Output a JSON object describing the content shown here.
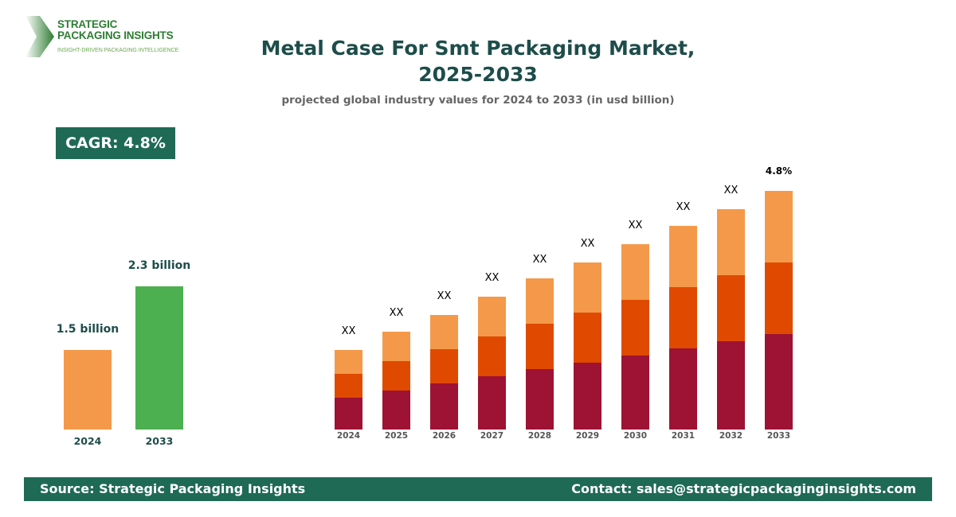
{
  "logo": {
    "line1": "STRATEGIC",
    "line2": "PACKAGING INSIGHTS",
    "tagline": "INSIGHT-DRIVEN PACKAGING INTELLIGENCE"
  },
  "header": {
    "title_line1": "Metal Case For Smt Packaging Market,",
    "title_line2": "2025-2033",
    "subtitle": "projected global industry values for 2024 to 2033 (in usd billion)"
  },
  "cagr_badge": "CAGR: 4.8%",
  "footer": {
    "source": "Source: Strategic Packaging Insights",
    "contact": "Contact: sales@strategicpackaginginsights.com"
  },
  "chart_data": [
    {
      "type": "bar",
      "categories": [
        "2024",
        "2033"
      ],
      "values": [
        1.5,
        2.3
      ],
      "data_labels": [
        "1.5 billion",
        "2.3 billion"
      ],
      "colors": [
        "#F4994A",
        "#4CB050"
      ]
    },
    {
      "type": "bar",
      "stacked": true,
      "categories": [
        "2024",
        "2025",
        "2026",
        "2027",
        "2028",
        "2029",
        "2030",
        "2031",
        "2032",
        "2033"
      ],
      "series": [
        {
          "values": [
            40,
            49,
            58,
            67,
            76,
            84,
            93,
            102,
            111,
            120
          ],
          "color": "#9E1233"
        },
        {
          "values": [
            30,
            37,
            43,
            50,
            57,
            63,
            70,
            77,
            83,
            90
          ],
          "color": "#E04A00"
        },
        {
          "values": [
            30,
            37,
            43,
            50,
            57,
            63,
            70,
            77,
            83,
            90
          ],
          "color": "#F4994A"
        }
      ],
      "data_labels": [
        "XX",
        "XX",
        "XX",
        "XX",
        "XX",
        "XX",
        "XX",
        "XX",
        "XX",
        "4.8%"
      ],
      "note_scale": "relative heights, no y-axis shown"
    }
  ]
}
